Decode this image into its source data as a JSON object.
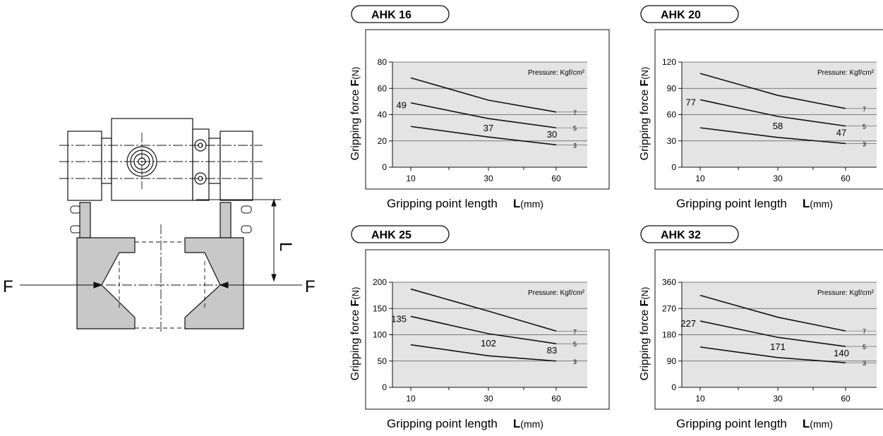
{
  "diagram": {
    "force_label_left": "F",
    "force_label_right": "F",
    "length_label": "L"
  },
  "colors": {
    "plot_bg": "#e4e4e4",
    "jaw_fill": "#c8c8c8",
    "line": "#111111"
  },
  "chart_data": [
    {
      "type": "line",
      "title": "AHK 16",
      "ylabel_prefix": "Gripping force ",
      "ylabel_symbol": "F",
      "ylabel_unit": "(N)",
      "xlabel_prefix": "Gripping point length",
      "xlabel_symbol": "L",
      "xlabel_unit": "(mm)",
      "pressure_note": "Pressure: Kgf/cm²",
      "x": [
        "10",
        "30",
        "60"
      ],
      "yticks": [
        0,
        20,
        40,
        60,
        80
      ],
      "ylim": [
        0,
        80
      ],
      "series": [
        {
          "name": "7",
          "values": [
            68,
            51,
            42
          ]
        },
        {
          "name": "5",
          "values": [
            49,
            37,
            30
          ]
        },
        {
          "name": "3",
          "values": [
            31,
            23,
            17
          ]
        }
      ],
      "annotations": [
        "49",
        "37",
        "30"
      ]
    },
    {
      "type": "line",
      "title": "AHK 20",
      "ylabel_prefix": "Gripping force ",
      "ylabel_symbol": "F",
      "ylabel_unit": "(N)",
      "xlabel_prefix": "Gripping point length",
      "xlabel_symbol": "L",
      "xlabel_unit": "(mm)",
      "pressure_note": "Pressure: Kgf/cm²",
      "x": [
        "10",
        "30",
        "60"
      ],
      "yticks": [
        0,
        30,
        60,
        90,
        120
      ],
      "ylim": [
        0,
        120
      ],
      "series": [
        {
          "name": "7",
          "values": [
            107,
            82,
            67
          ]
        },
        {
          "name": "5",
          "values": [
            77,
            58,
            47
          ]
        },
        {
          "name": "3",
          "values": [
            45,
            34,
            27
          ]
        }
      ],
      "annotations": [
        "77",
        "58",
        "47"
      ]
    },
    {
      "type": "line",
      "title": "AHK 25",
      "ylabel_prefix": "Gripping force ",
      "ylabel_symbol": "F",
      "ylabel_unit": "(N)",
      "xlabel_prefix": "Gripping point length",
      "xlabel_symbol": "L",
      "xlabel_unit": "(mm)",
      "pressure_note": "Pressure: Kgf/cm²",
      "x": [
        "10",
        "30",
        "60"
      ],
      "yticks": [
        0,
        50,
        100,
        150,
        200
      ],
      "ylim": [
        0,
        200
      ],
      "series": [
        {
          "name": "7",
          "values": [
            187,
            145,
            107
          ]
        },
        {
          "name": "5",
          "values": [
            135,
            102,
            83
          ]
        },
        {
          "name": "3",
          "values": [
            81,
            60,
            50
          ]
        }
      ],
      "annotations": [
        "135",
        "102",
        "83"
      ]
    },
    {
      "type": "line",
      "title": "AHK 32",
      "ylabel_prefix": "Gripping force ",
      "ylabel_symbol": "F",
      "ylabel_unit": "(N)",
      "xlabel_prefix": "Gripping point length",
      "xlabel_symbol": "L",
      "xlabel_unit": "(mm)",
      "pressure_note": "Pressure: Kgf/cm²",
      "x": [
        "10",
        "30",
        "60"
      ],
      "yticks": [
        0,
        90,
        180,
        270,
        360
      ],
      "ylim": [
        0,
        360
      ],
      "series": [
        {
          "name": "7",
          "values": [
            315,
            240,
            193
          ]
        },
        {
          "name": "5",
          "values": [
            227,
            171,
            140
          ]
        },
        {
          "name": "3",
          "values": [
            138,
            102,
            84
          ]
        }
      ],
      "annotations": [
        "227",
        "171",
        "140"
      ]
    }
  ]
}
